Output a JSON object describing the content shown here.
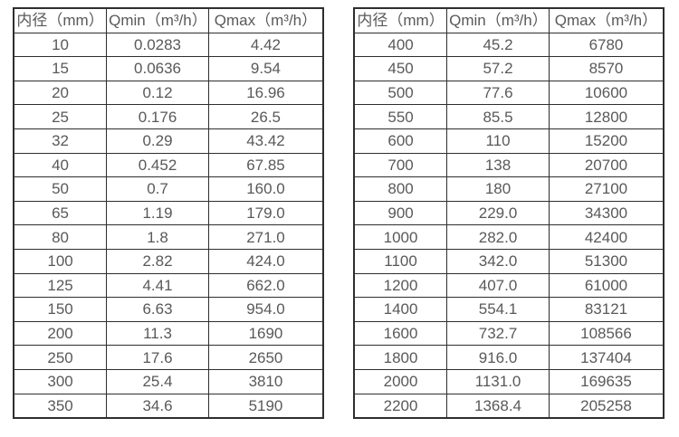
{
  "colors": {
    "background": "#ffffff",
    "table_border": "#2e2e2e",
    "text": "#595959"
  },
  "tables": [
    {
      "name": "flow-table-small-diameters",
      "headers": [
        "内径（mm）",
        "Qmin（m³/h）",
        "Qmax（m³/h）"
      ],
      "rows": [
        [
          "10",
          "0.0283",
          "4.42"
        ],
        [
          "15",
          "0.0636",
          "9.54"
        ],
        [
          "20",
          "0.12",
          "16.96"
        ],
        [
          "25",
          "0.176",
          "26.5"
        ],
        [
          "32",
          "0.29",
          "43.42"
        ],
        [
          "40",
          "0.452",
          "67.85"
        ],
        [
          "50",
          "0.7",
          "160.0"
        ],
        [
          "65",
          "1.19",
          "179.0"
        ],
        [
          "80",
          "1.8",
          "271.0"
        ],
        [
          "100",
          "2.82",
          "424.0"
        ],
        [
          "125",
          "4.41",
          "662.0"
        ],
        [
          "150",
          "6.63",
          "954.0"
        ],
        [
          "200",
          "11.3",
          "1690"
        ],
        [
          "250",
          "17.6",
          "2650"
        ],
        [
          "300",
          "25.4",
          "3810"
        ],
        [
          "350",
          "34.6",
          "5190"
        ]
      ]
    },
    {
      "name": "flow-table-large-diameters",
      "headers": [
        "内径（mm）",
        "Qmin（m³/h）",
        "Qmax（m³/h）"
      ],
      "rows": [
        [
          "400",
          "45.2",
          "6780"
        ],
        [
          "450",
          "57.2",
          "8570"
        ],
        [
          "500",
          "77.6",
          "10600"
        ],
        [
          "550",
          "85.5",
          "12800"
        ],
        [
          "600",
          "110",
          "15200"
        ],
        [
          "700",
          "138",
          "20700"
        ],
        [
          "800",
          "180",
          "27100"
        ],
        [
          "900",
          "229.0",
          "34300"
        ],
        [
          "1000",
          "282.0",
          "42400"
        ],
        [
          "1100",
          "342.0",
          "51300"
        ],
        [
          "1200",
          "407.0",
          "61000"
        ],
        [
          "1400",
          "554.1",
          "83121"
        ],
        [
          "1600",
          "732.7",
          "108566"
        ],
        [
          "1800",
          "916.0",
          "137404"
        ],
        [
          "2000",
          "1131.0",
          "169635"
        ],
        [
          "2200",
          "1368.4",
          "205258"
        ]
      ]
    }
  ]
}
